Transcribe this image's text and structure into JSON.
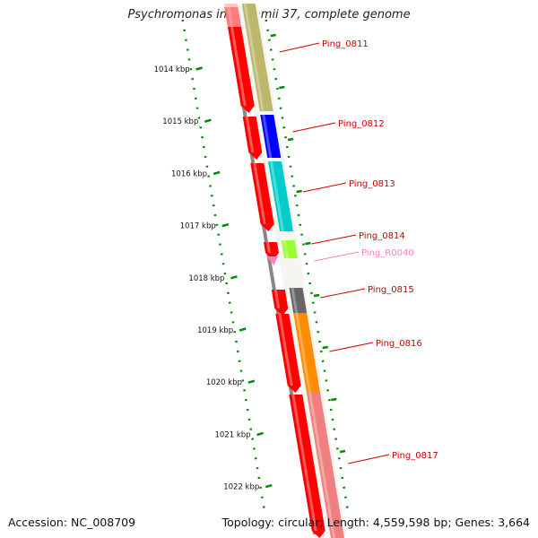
{
  "title": "Psychromonas ingrahamii 37, complete genome",
  "footer": {
    "accession": "Accession: NC_008709",
    "stats": "Topology: circular; Length: 4,559,598 bp; Genes: 3,664"
  },
  "ruler": {
    "labels": [
      "1014 kbp",
      "1015 kbp",
      "1016 kbp",
      "1017 kbp",
      "1018 kbp",
      "1019 kbp",
      "1020 kbp",
      "1021 kbp",
      "1022 kbp"
    ]
  },
  "colors": {
    "cds_strand": "#ff0000",
    "gc_ticks": "#008800",
    "label_line": "#cc0000",
    "rna_label": "#ff80c0",
    "backbone": "#888888"
  },
  "genes": [
    {
      "name": "Ping_0811",
      "color": "#bdb76b"
    },
    {
      "name": "Ping_0812",
      "color": "#0000ff"
    },
    {
      "name": "Ping_0813",
      "color": "#00cccc"
    },
    {
      "name": "Ping_0814",
      "color": "#99ff33"
    },
    {
      "name": "Ping_R0040",
      "color": "#ff80c0"
    },
    {
      "name": "Ping_0815",
      "color": "#666666"
    },
    {
      "name": "Ping_0816",
      "color": "#ff8c00"
    },
    {
      "name": "Ping_0817",
      "color": "#f08080"
    }
  ]
}
